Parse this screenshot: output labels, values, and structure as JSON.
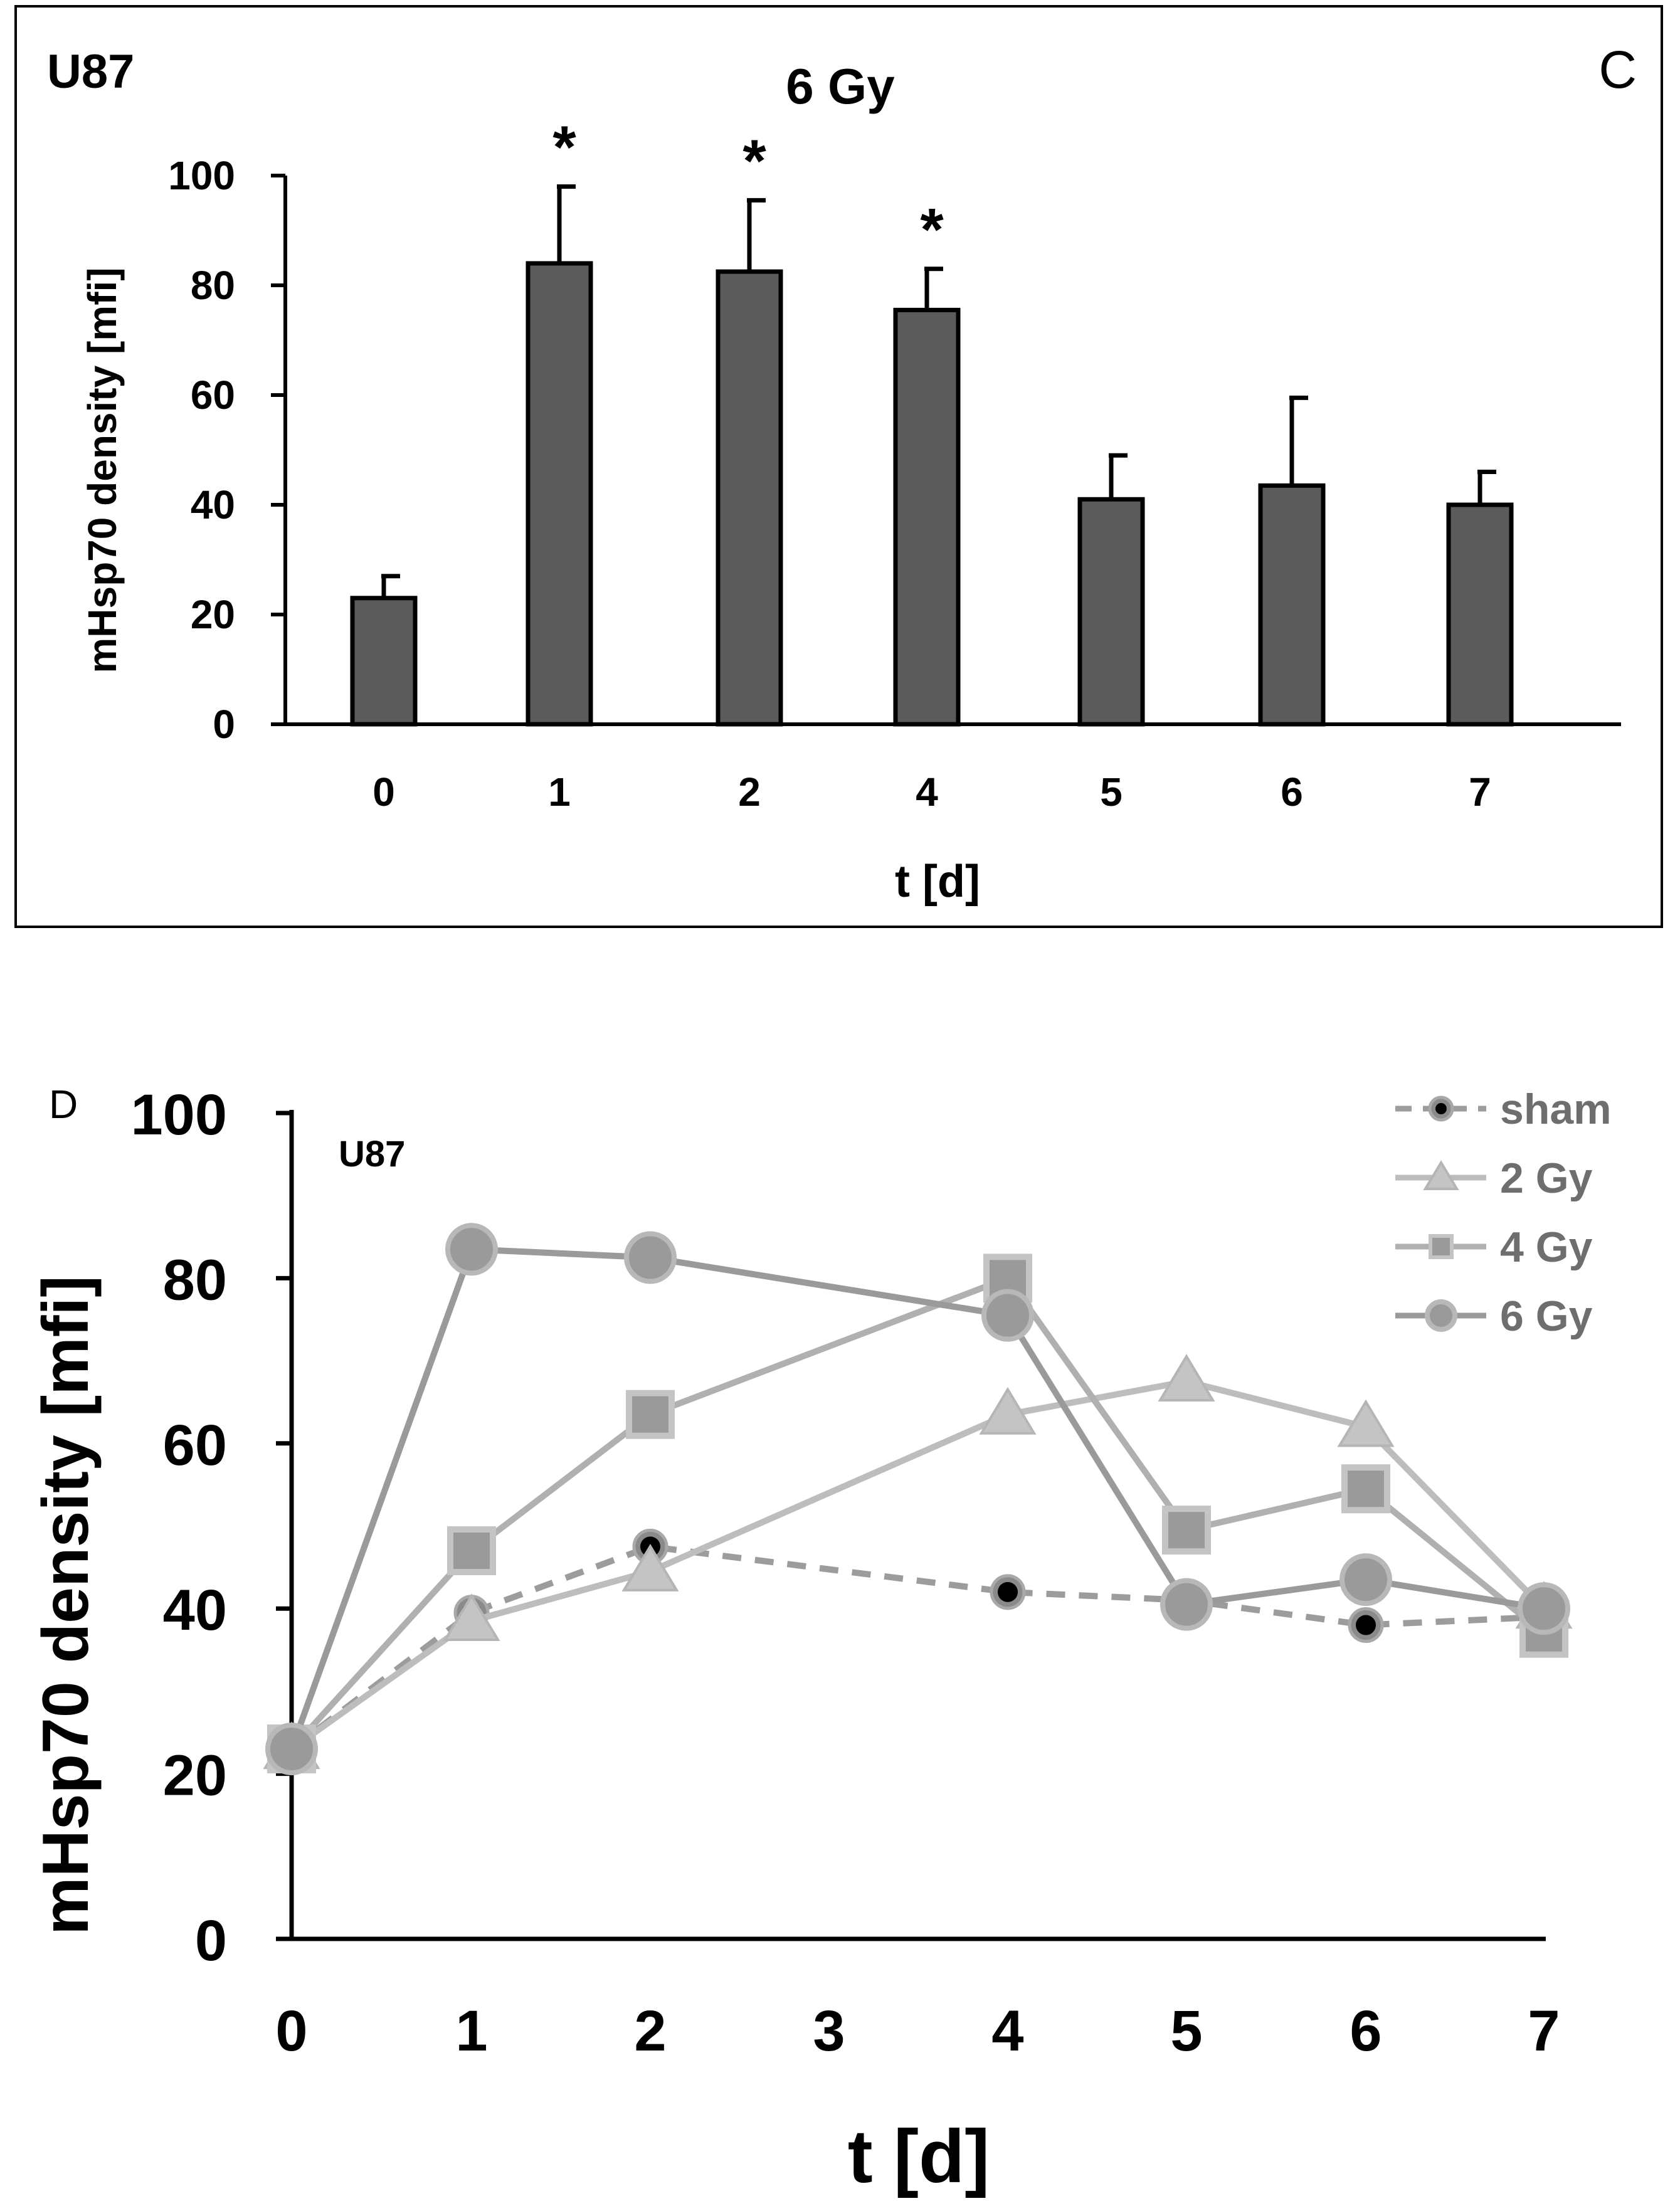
{
  "chart_data": [
    {
      "type": "bar",
      "panel_label": "C",
      "cell_line": "U87",
      "title": "6 Gy",
      "xlabel": "t [d]",
      "ylabel": "mHsp70 density [mfi]",
      "ylim": [
        0,
        100
      ],
      "yticks": [
        "0",
        "20",
        "40",
        "60",
        "80",
        "100"
      ],
      "categories": [
        "0",
        "1",
        "2",
        "4",
        "5",
        "6",
        "7"
      ],
      "values": [
        23,
        84,
        82.5,
        75.5,
        41,
        43.5,
        40
      ],
      "errors": [
        4,
        14,
        13,
        7.5,
        8,
        16,
        6
      ],
      "significance": [
        "",
        "*",
        "*",
        "*",
        "",
        "",
        ""
      ],
      "bar_color": "#5b5b5b"
    },
    {
      "type": "line",
      "panel_label": "D",
      "cell_line": "U87",
      "xlabel": "t [d]",
      "ylabel": "mHsp70 density [mfi]",
      "ylim": [
        0,
        100
      ],
      "yticks": [
        "0",
        "20",
        "40",
        "60",
        "80",
        "100"
      ],
      "categories": [
        "0",
        "1",
        "2",
        "3",
        "4",
        "5",
        "6",
        "7"
      ],
      "legend_position": "top-right",
      "series": [
        {
          "name": "sham",
          "x": [
            0,
            1,
            2,
            4,
            5,
            6,
            7
          ],
          "values": [
            23,
            39.5,
            47.5,
            42,
            41,
            38,
            39
          ],
          "color": "#9c9c9c",
          "marker": "circle-dot",
          "dashed": true
        },
        {
          "name": "2 Gy",
          "x": [
            0,
            1,
            2,
            4,
            5,
            6,
            7
          ],
          "values": [
            23,
            38.5,
            44.5,
            63.5,
            67.5,
            62,
            40
          ],
          "color": "#bdbdbd",
          "marker": "triangle",
          "dashed": false
        },
        {
          "name": "4 Gy",
          "x": [
            0,
            1,
            2,
            4,
            5,
            6,
            7
          ],
          "values": [
            23,
            47,
            63.5,
            80,
            49.5,
            54.5,
            37
          ],
          "color": "#b0b0b0",
          "marker": "square",
          "dashed": false
        },
        {
          "name": "6 Gy",
          "x": [
            0,
            1,
            2,
            4,
            5,
            6,
            7
          ],
          "values": [
            23,
            83.5,
            82.5,
            75.5,
            40.5,
            43.5,
            40
          ],
          "color": "#9a9a9a",
          "marker": "circle",
          "dashed": false
        }
      ]
    }
  ]
}
